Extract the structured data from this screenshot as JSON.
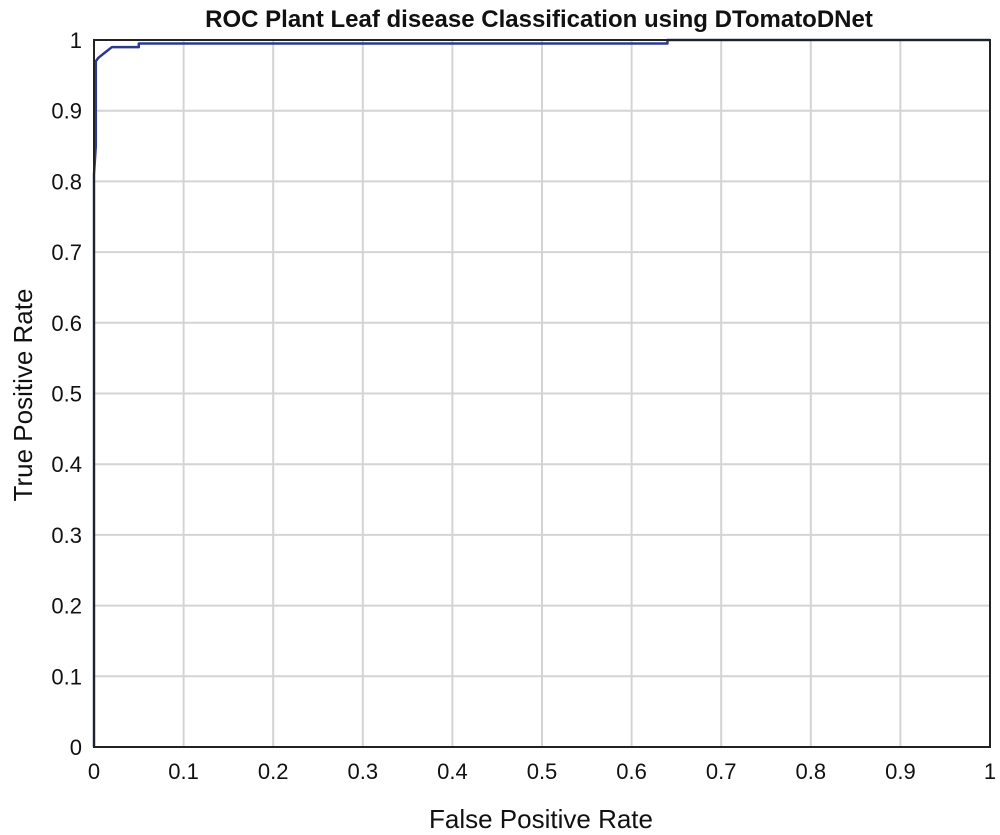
{
  "chart_data": {
    "type": "line",
    "title": "ROC Plant Leaf disease Classification using DTomatoDNet",
    "xlabel": "False Positive Rate",
    "ylabel": "True Positive Rate",
    "xlim": [
      0,
      1
    ],
    "ylim": [
      0,
      1
    ],
    "xticks": [
      0,
      0.1,
      0.2,
      0.3,
      0.4,
      0.5,
      0.6,
      0.7,
      0.8,
      0.9,
      1
    ],
    "yticks": [
      0,
      0.1,
      0.2,
      0.3,
      0.4,
      0.5,
      0.6,
      0.7,
      0.8,
      0.9,
      1
    ],
    "xtick_labels": [
      "0",
      "0.1",
      "0.2",
      "0.3",
      "0.4",
      "0.5",
      "0.6",
      "0.7",
      "0.8",
      "0.9",
      "1"
    ],
    "ytick_labels": [
      "0",
      "0.1",
      "0.2",
      "0.3",
      "0.4",
      "0.5",
      "0.6",
      "0.7",
      "0.8",
      "0.9",
      "1"
    ],
    "grid": true,
    "series": [
      {
        "color": "#2b3a8f",
        "x": [
          0,
          0,
          0.002,
          0.002,
          0.005,
          0.01,
          0.015,
          0.02,
          0.05,
          0.05,
          0.64,
          0.64,
          1.0
        ],
        "y": [
          0,
          0.81,
          0.85,
          0.97,
          0.975,
          0.98,
          0.985,
          0.99,
          0.99,
          0.995,
          0.995,
          1.0,
          1.0
        ]
      }
    ]
  }
}
